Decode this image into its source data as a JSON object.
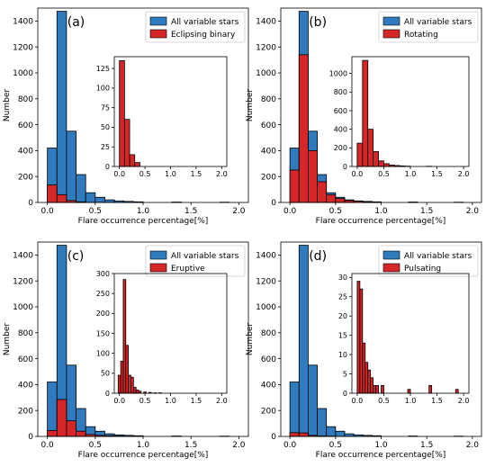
{
  "colors": {
    "blue": "#2f7bbd",
    "red": "#d62728",
    "edge": "#000000"
  },
  "chart_data": [
    {
      "type": "bar",
      "panel_label": "(a)",
      "xlabel": "Flare occurrence percentage[%]",
      "ylabel": "Number",
      "xlim": [
        -0.1,
        2.1
      ],
      "ylim": [
        0,
        1500
      ],
      "xticks": [
        "0.0",
        "0.5",
        "1.0",
        "1.5",
        "2.0"
      ],
      "yticks": [
        "0",
        "200",
        "400",
        "600",
        "800",
        "1000",
        "1200",
        "1400"
      ],
      "bin_width": 0.1,
      "series": [
        {
          "name": "All variable stars",
          "x": [
            0.05,
            0.15,
            0.25,
            0.35,
            0.45,
            0.55,
            0.65,
            0.75,
            0.85,
            0.95,
            1.35,
            1.85
          ],
          "values": [
            420,
            1475,
            550,
            215,
            75,
            40,
            20,
            12,
            8,
            5,
            3,
            2
          ]
        },
        {
          "name": "Eclipsing binary",
          "x": [
            0.05,
            0.15,
            0.25,
            0.35
          ],
          "values": [
            135,
            60,
            15,
            5
          ]
        }
      ],
      "legend_loc": "top-right",
      "inset": {
        "xlim": [
          -0.1,
          2.1
        ],
        "ylim": [
          0,
          140
        ],
        "xticks": [
          "0.0",
          "0.5",
          "1.0",
          "1.5",
          "2.0"
        ],
        "yticks": [
          "0",
          "25",
          "50",
          "75",
          "100",
          "125"
        ],
        "x": [
          0.05,
          0.15,
          0.25,
          0.35
        ],
        "values": [
          135,
          60,
          15,
          5
        ]
      }
    },
    {
      "type": "bar",
      "panel_label": "(b)",
      "xlabel": "Flare occurrence percentage[%]",
      "ylabel": "Number",
      "xlim": [
        -0.1,
        2.1
      ],
      "ylim": [
        0,
        1500
      ],
      "xticks": [
        "0.0",
        "0.5",
        "1.0",
        "1.5",
        "2.0"
      ],
      "yticks": [
        "0",
        "200",
        "400",
        "600",
        "800",
        "1000",
        "1200",
        "1400"
      ],
      "bin_width": 0.1,
      "series": [
        {
          "name": "All variable stars",
          "x": [
            0.05,
            0.15,
            0.25,
            0.35,
            0.45,
            0.55,
            0.65,
            0.75,
            0.85,
            0.95,
            1.35,
            1.85
          ],
          "values": [
            420,
            1475,
            550,
            215,
            75,
            40,
            20,
            12,
            8,
            5,
            3,
            2
          ]
        },
        {
          "name": "Rotating",
          "x": [
            0.05,
            0.15,
            0.25,
            0.35,
            0.45,
            0.55,
            0.65,
            0.75,
            0.85,
            0.95,
            1.35
          ],
          "values": [
            250,
            1140,
            400,
            160,
            60,
            30,
            15,
            10,
            6,
            3,
            2
          ]
        }
      ],
      "legend_loc": "top-right",
      "inset": {
        "xlim": [
          -0.1,
          2.1
        ],
        "ylim": [
          0,
          1180
        ],
        "xticks": [
          "0.0",
          "0.5",
          "1.0",
          "1.5",
          "2.0"
        ],
        "yticks": [
          "0",
          "200",
          "400",
          "600",
          "800",
          "1000"
        ],
        "x": [
          0.05,
          0.15,
          0.25,
          0.35,
          0.45,
          0.55,
          0.65,
          0.75,
          0.85,
          0.95,
          1.35
        ],
        "values": [
          250,
          1140,
          400,
          160,
          60,
          30,
          15,
          10,
          6,
          3,
          2
        ]
      }
    },
    {
      "type": "bar",
      "panel_label": "(c)",
      "xlabel": "Flare occurrence percentage[%]",
      "ylabel": "Number",
      "xlim": [
        -0.1,
        2.1
      ],
      "ylim": [
        0,
        1500
      ],
      "xticks": [
        "0.0",
        "0.5",
        "1.0",
        "1.5",
        "2.0"
      ],
      "yticks": [
        "0",
        "200",
        "400",
        "600",
        "800",
        "1000",
        "1200",
        "1400"
      ],
      "bin_width": 0.1,
      "series": [
        {
          "name": "All variable stars",
          "x": [
            0.05,
            0.15,
            0.25,
            0.35,
            0.45,
            0.55,
            0.65,
            0.75,
            0.85,
            0.95,
            1.35,
            1.85
          ],
          "values": [
            420,
            1475,
            550,
            215,
            75,
            40,
            20,
            12,
            8,
            5,
            3,
            2
          ]
        },
        {
          "name": "Eruptive",
          "x": [
            0.05,
            0.15,
            0.25,
            0.35,
            0.45,
            0.55,
            0.65,
            0.75,
            0.85
          ],
          "values": [
            45,
            285,
            120,
            40,
            15,
            8,
            5,
            3,
            2
          ]
        }
      ],
      "legend_loc": "top-right",
      "inset": {
        "xlim": [
          -0.1,
          2.1
        ],
        "ylim": [
          0,
          300
        ],
        "xticks": [
          "0.0",
          "0.5",
          "1.0",
          "1.5",
          "2.0"
        ],
        "yticks": [
          "0",
          "50",
          "100",
          "150",
          "200",
          "250",
          "300"
        ],
        "x": [
          0.0,
          0.05,
          0.1,
          0.15,
          0.2,
          0.25,
          0.3,
          0.35,
          0.4,
          0.5,
          0.6,
          0.7,
          0.8
        ],
        "values": [
          45,
          80,
          285,
          120,
          45,
          40,
          15,
          8,
          5,
          3,
          2,
          1,
          1
        ],
        "bar_width": 0.05
      }
    },
    {
      "type": "bar",
      "panel_label": "(d)",
      "xlabel": "Flare occurrence percentage[%]",
      "ylabel": "Number",
      "xlim": [
        -0.1,
        2.1
      ],
      "ylim": [
        0,
        1500
      ],
      "xticks": [
        "0.0",
        "0.5",
        "1.0",
        "1.5",
        "2.0"
      ],
      "yticks": [
        "0",
        "200",
        "400",
        "600",
        "800",
        "1000",
        "1200",
        "1400"
      ],
      "bin_width": 0.1,
      "series": [
        {
          "name": "All variable stars",
          "x": [
            0.05,
            0.15,
            0.25,
            0.35,
            0.45,
            0.55,
            0.65,
            0.75,
            0.85,
            0.95,
            1.35,
            1.85
          ],
          "values": [
            420,
            1475,
            550,
            215,
            75,
            40,
            20,
            12,
            8,
            5,
            3,
            2
          ]
        },
        {
          "name": "Pulsating",
          "x": [
            0.05,
            0.15,
            0.25,
            0.35,
            0.45
          ],
          "values": [
            29,
            27,
            8,
            4,
            2
          ]
        }
      ],
      "legend_loc": "top-right",
      "inset": {
        "xlim": [
          -0.1,
          2.1
        ],
        "ylim": [
          0,
          31
        ],
        "xticks": [
          "0.0",
          "0.5",
          "1.0",
          "1.5",
          "2.0"
        ],
        "yticks": [
          "0",
          "5",
          "10",
          "15",
          "20",
          "25",
          "30"
        ],
        "x": [
          0.025,
          0.075,
          0.125,
          0.175,
          0.225,
          0.275,
          0.325,
          0.375,
          0.475,
          0.975,
          1.375,
          1.875
        ],
        "values": [
          29,
          27,
          13,
          8,
          6,
          4,
          2,
          2,
          2,
          1,
          2,
          1
        ],
        "bar_width": 0.05
      }
    }
  ]
}
